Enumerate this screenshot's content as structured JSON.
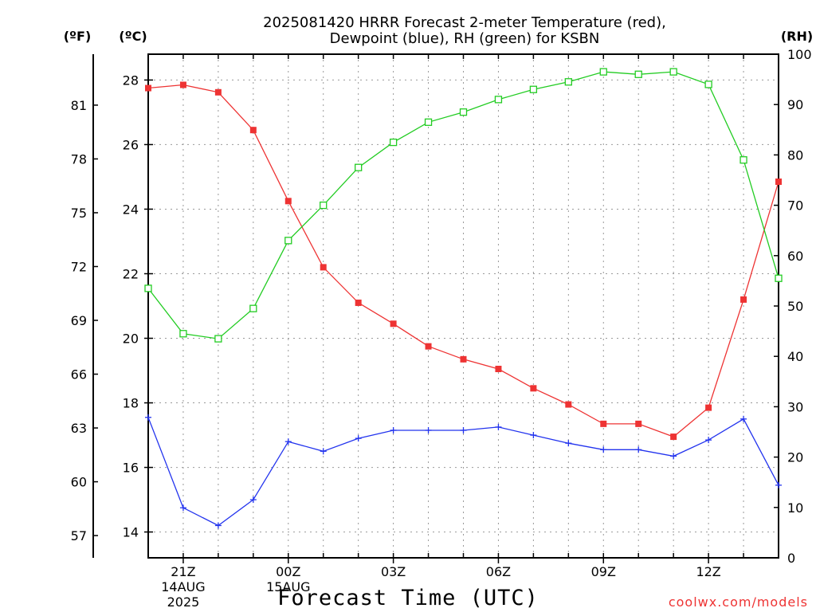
{
  "chart_data": {
    "type": "line",
    "title": [
      "2025081420 HRRR Forecast 2-meter Temperature (red),",
      "Dewpoint (blue), RH (green) for KSBN"
    ],
    "xlabel": "Forecast Time (UTC)",
    "credit": "coolwx.com/models",
    "unit_f": "(ºF)",
    "unit_c": "(ºC)",
    "unit_rh": "(RH)",
    "x_hours": [
      20,
      21,
      22,
      23,
      24,
      25,
      26,
      27,
      28,
      29,
      30,
      31,
      32,
      33,
      34,
      35,
      36,
      37,
      38
    ],
    "x_range": [
      20,
      38
    ],
    "x_ticks": [
      {
        "hour": 21,
        "label": "21Z",
        "date": "14AUG",
        "year": "2025"
      },
      {
        "hour": 24,
        "label": "00Z",
        "date": "15AUG",
        "year": ""
      },
      {
        "hour": 27,
        "label": "03Z",
        "date": "",
        "year": ""
      },
      {
        "hour": 30,
        "label": "06Z",
        "date": "",
        "year": ""
      },
      {
        "hour": 33,
        "label": "09Z",
        "date": "",
        "year": ""
      },
      {
        "hour": 36,
        "label": "12Z",
        "date": "",
        "year": ""
      }
    ],
    "c_range": [
      13.2,
      28.8
    ],
    "c_ticks": [
      14,
      16,
      18,
      20,
      22,
      24,
      26,
      28
    ],
    "f_ticks": [
      57,
      60,
      63,
      66,
      69,
      72,
      75,
      78,
      81
    ],
    "rh_range": [
      0,
      100
    ],
    "rh_ticks": [
      0,
      10,
      20,
      30,
      40,
      50,
      60,
      70,
      80,
      90,
      100
    ],
    "grid": true,
    "series": [
      {
        "name": "Temperature",
        "axis": "c",
        "color": "#ee3333",
        "marker": "filled-square",
        "values": [
          27.75,
          27.85,
          27.62,
          26.45,
          24.25,
          22.2,
          21.1,
          20.45,
          19.75,
          19.35,
          19.05,
          18.45,
          17.95,
          17.35,
          17.35,
          16.95,
          17.85,
          21.2,
          24.85
        ]
      },
      {
        "name": "Dewpoint",
        "axis": "c",
        "color": "#2233ee",
        "marker": "plus",
        "values": [
          17.55,
          14.75,
          14.2,
          15.0,
          16.8,
          16.5,
          16.9,
          17.15,
          17.15,
          17.15,
          17.25,
          17.0,
          16.75,
          16.55,
          16.55,
          16.35,
          16.85,
          17.5,
          15.45
        ]
      },
      {
        "name": "RH",
        "axis": "rh",
        "color": "#22cc22",
        "marker": "hollow-square",
        "values": [
          53.5,
          44.5,
          43.5,
          49.5,
          63.0,
          70.0,
          77.5,
          82.5,
          86.5,
          88.5,
          91.0,
          93.0,
          94.5,
          96.5,
          96.0,
          96.5,
          94.0,
          79.0,
          55.5
        ]
      }
    ]
  }
}
